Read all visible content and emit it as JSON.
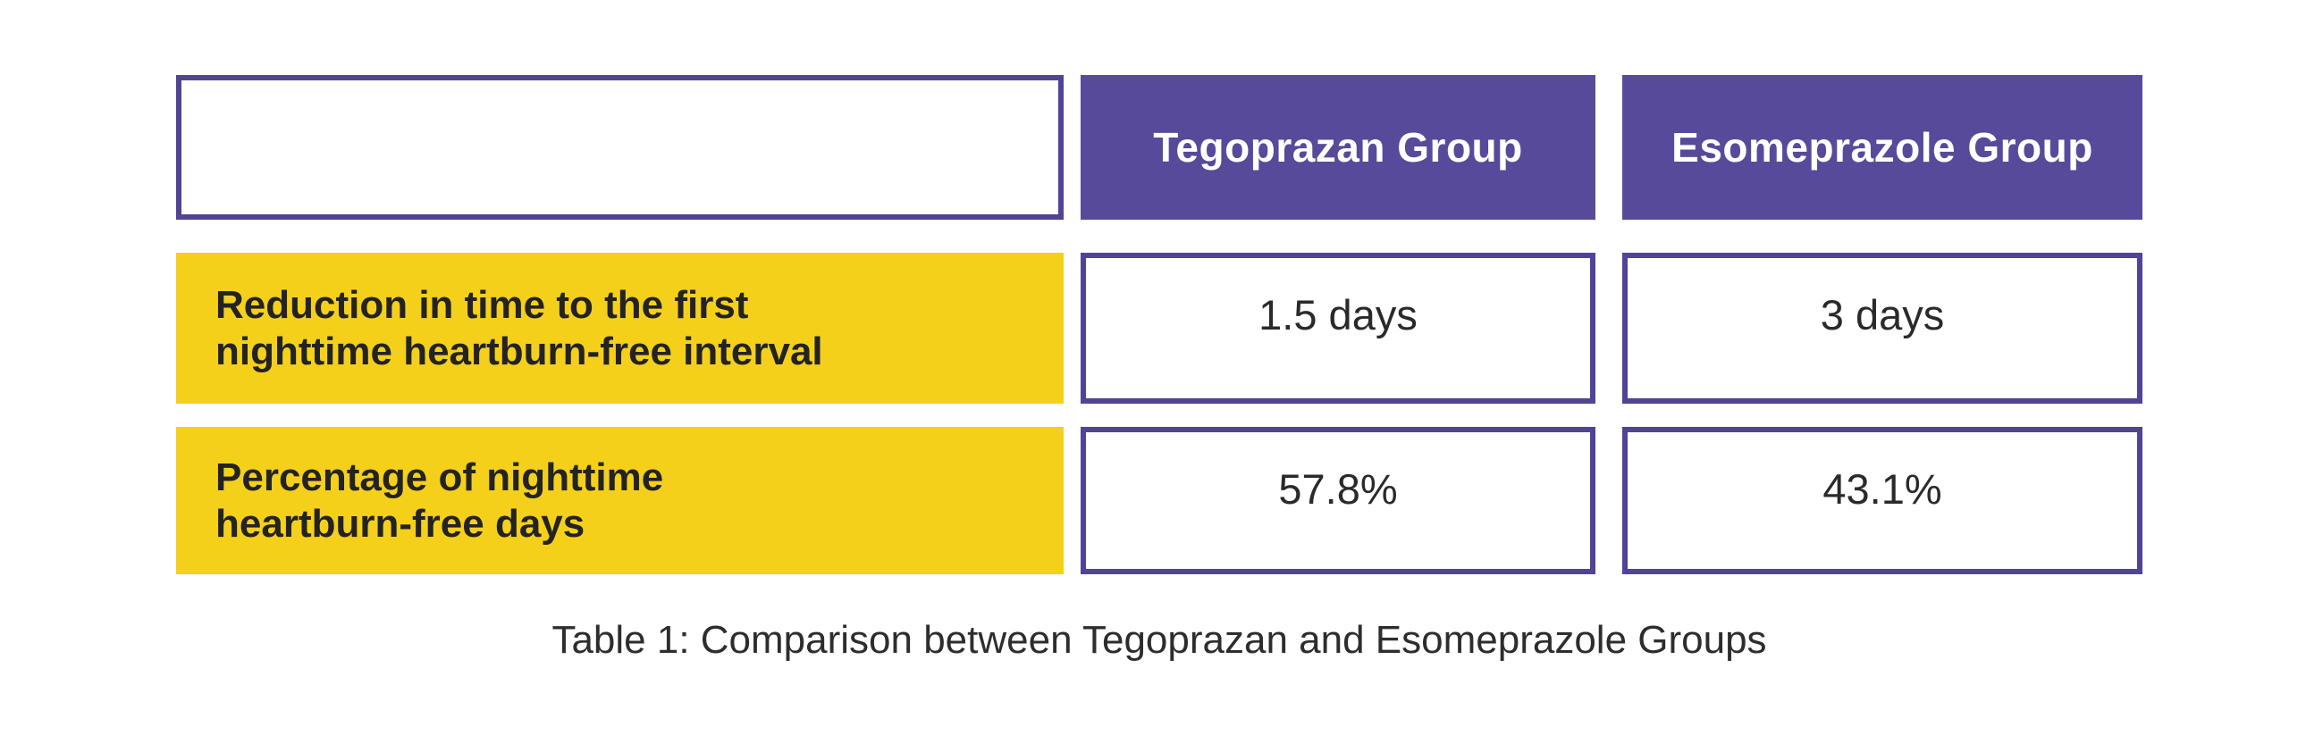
{
  "colors": {
    "page_bg": "#ffffff",
    "header_bg": "#584a9b",
    "header_text": "#ffffff",
    "label_bg": "#f5d01b",
    "label_text": "#232323",
    "cell_border": "#4f4496",
    "value_text": "#2a2a2a",
    "caption_text": "#2d2d2d"
  },
  "table": {
    "columns": [
      {
        "label": ""
      },
      {
        "label": "Tegoprazan Group"
      },
      {
        "label": "Esomeprazole Group"
      }
    ],
    "rows": [
      {
        "label_lines": [
          "Reduction in time to the first",
          "nighttime heartburn-free interval"
        ],
        "values": [
          "1.5 days",
          "3 days"
        ]
      },
      {
        "label_lines": [
          "Percentage of nighttime",
          "heartburn-free days"
        ],
        "values": [
          "57.8%",
          "43.1%"
        ]
      }
    ],
    "caption": "Table 1: Comparison between Tegoprazan and Esomeprazole Groups"
  },
  "chart_data": {
    "type": "table",
    "title": "Table 1: Comparison between Tegoprazan and Esomeprazole Groups",
    "columns": [
      "",
      "Tegoprazan Group",
      "Esomeprazole Group"
    ],
    "rows": [
      [
        "Reduction in time to the first nighttime heartburn-free interval",
        "1.5 days",
        "3 days"
      ],
      [
        "Percentage of nighttime heartburn-free days",
        "57.8%",
        "43.1%"
      ]
    ],
    "series": [
      {
        "name": "Tegoprazan Group",
        "values": [
          1.5,
          57.8
        ],
        "units": [
          "days",
          "%"
        ]
      },
      {
        "name": "Esomeprazole Group",
        "values": [
          3,
          43.1
        ],
        "units": [
          "days",
          "%"
        ]
      }
    ],
    "categories": [
      "Reduction in time to the first nighttime heartburn-free interval",
      "Percentage of nighttime heartburn-free days"
    ],
    "legend_position": "top",
    "grid": false
  }
}
